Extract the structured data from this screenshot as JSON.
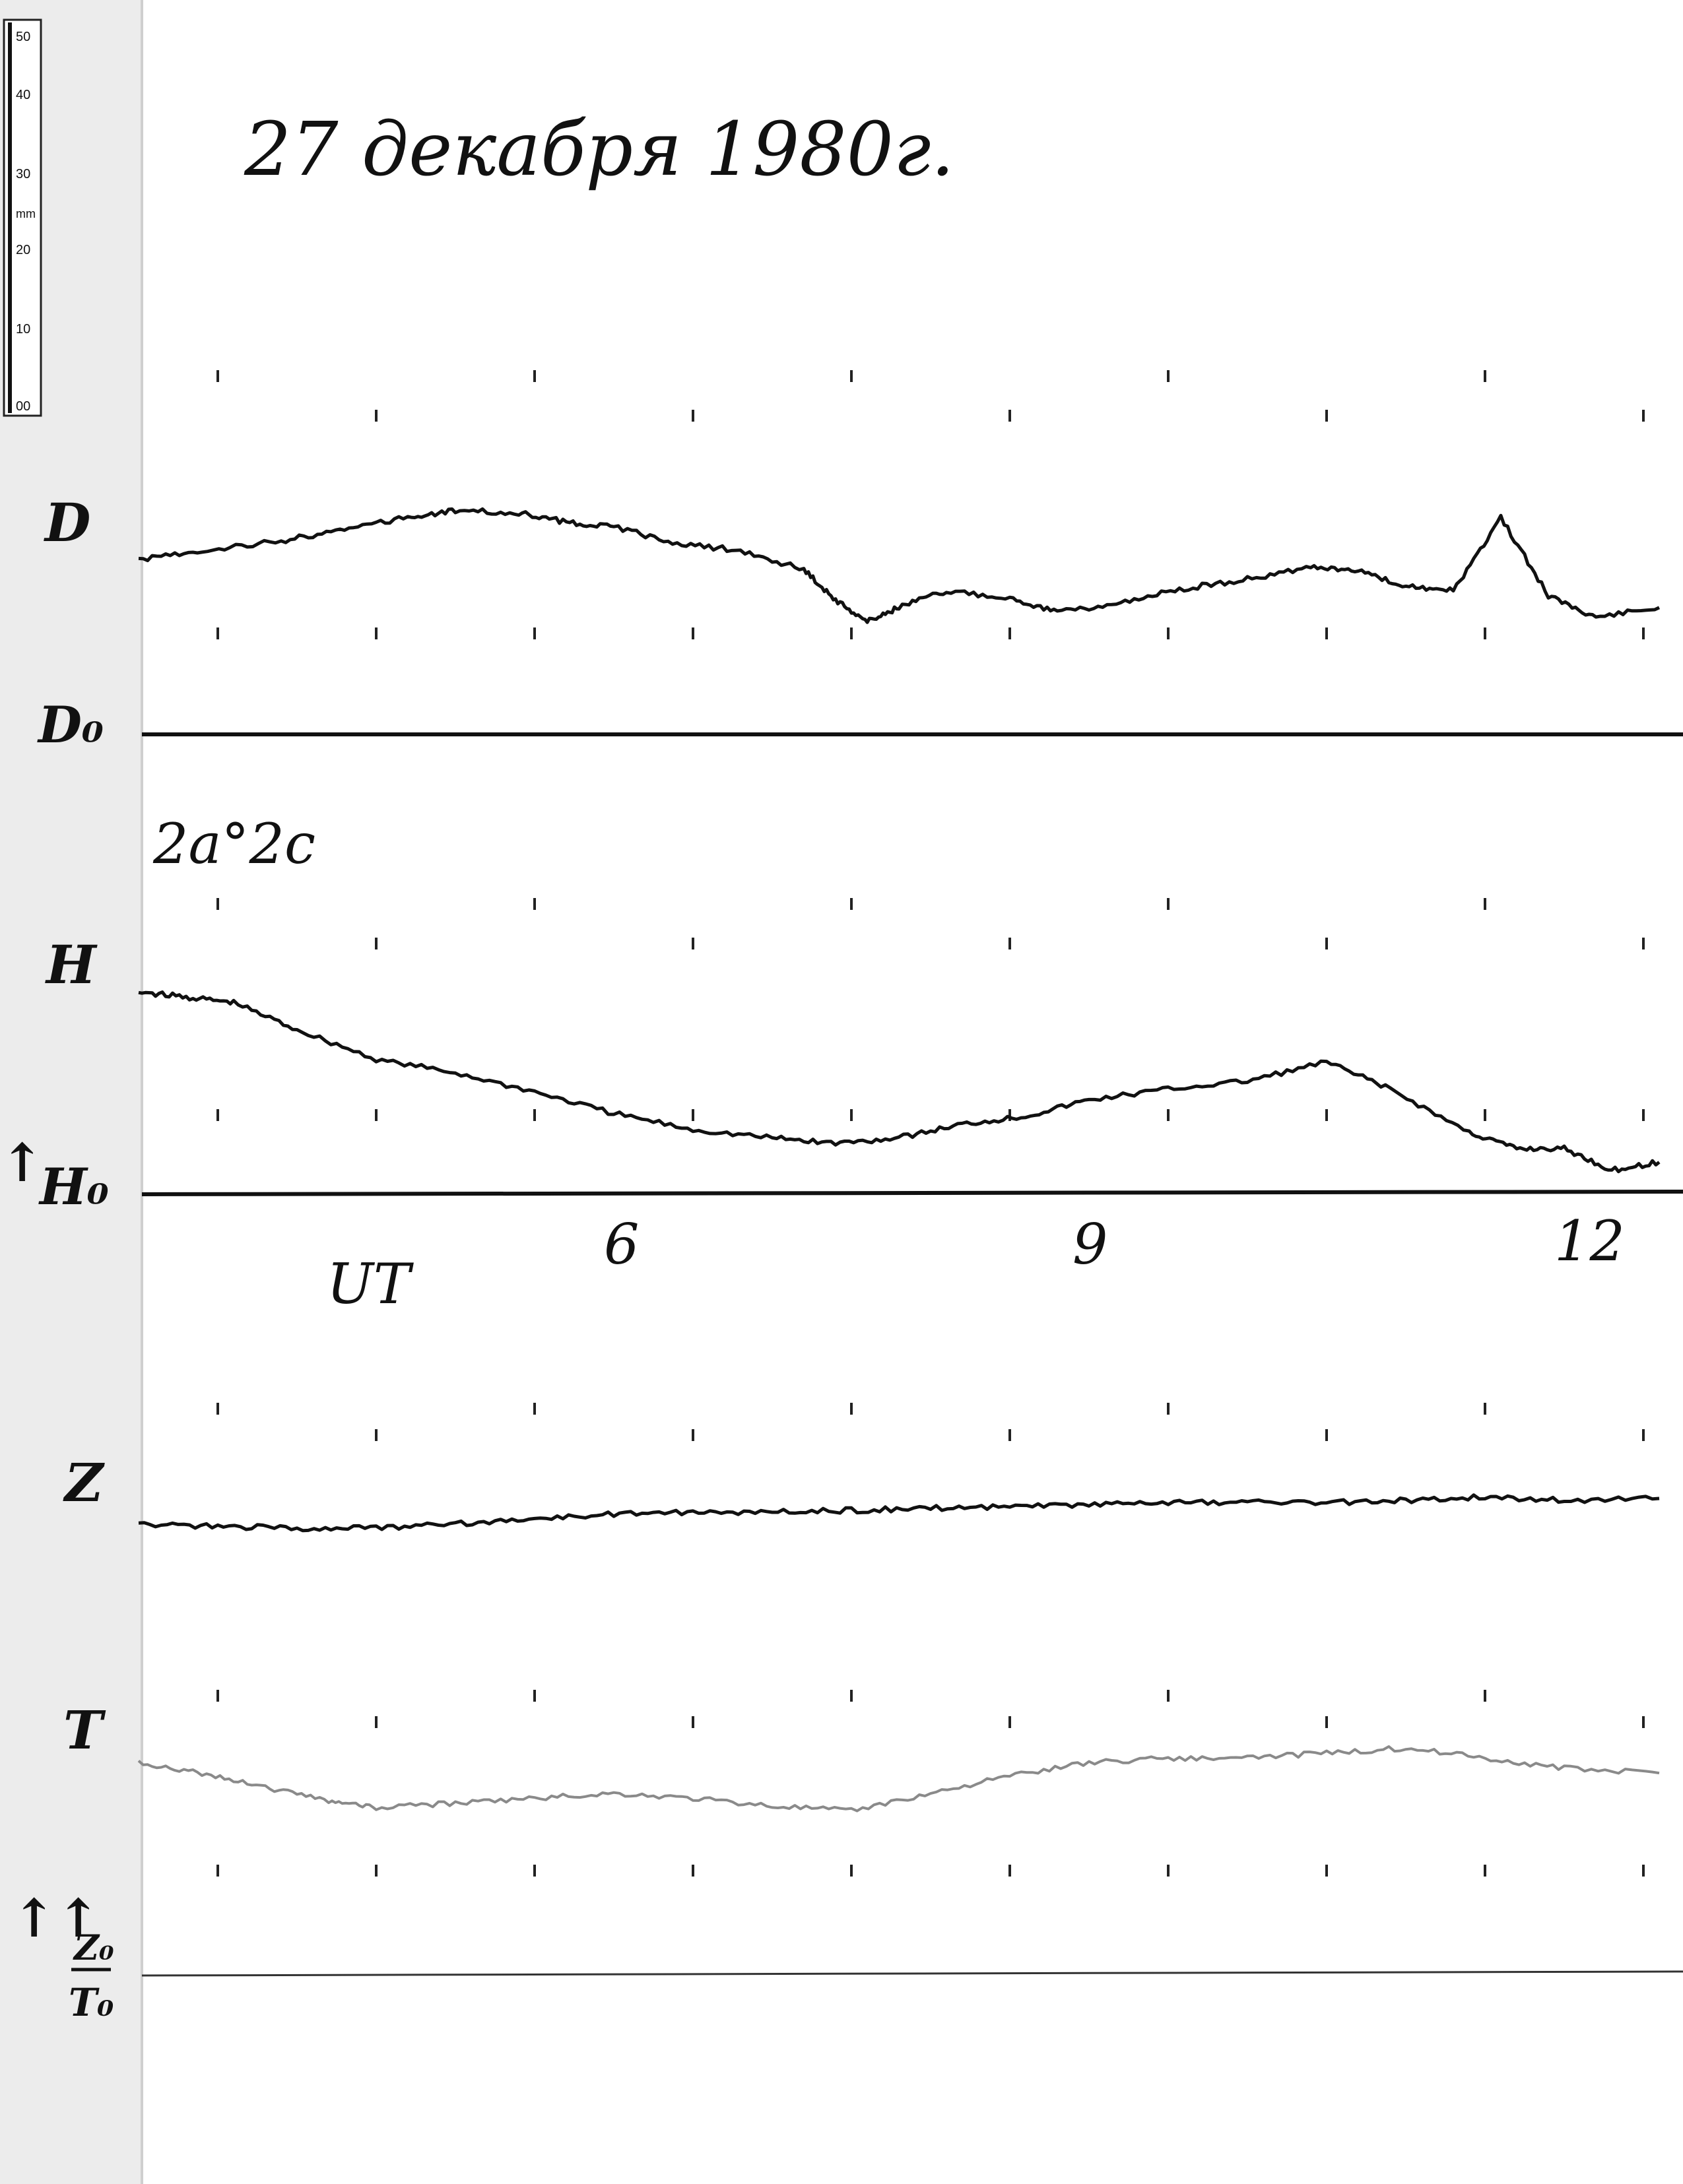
{
  "title": "27 декабря 1980г.",
  "scale_note": "2а°2с",
  "time_axis": {
    "label": "UT",
    "ticks": [
      "6",
      "9",
      "12"
    ]
  },
  "ruler": {
    "unit": "mm",
    "ticks": [
      "50",
      "40",
      "30",
      "20",
      "10",
      "00"
    ]
  },
  "baselines": {
    "D": "D₀",
    "H": "H₀",
    "Z": "Z₀",
    "T": "T₀"
  },
  "arrows": {
    "single": "↑",
    "double": "↑↑"
  },
  "colors": {
    "paper": "#ffffff",
    "ink": "#111111",
    "trace_T": "#8a8a8a",
    "margin": "#d6d6d6"
  },
  "chart_data": {
    "type": "line",
    "x_unit": "UT hours",
    "x_ticks": [
      6,
      9,
      12
    ],
    "series": [
      {
        "name": "D",
        "points": [
          [
            3.0,
            0.42
          ],
          [
            3.4,
            0.46
          ],
          [
            3.9,
            0.5
          ],
          [
            4.3,
            0.55
          ],
          [
            4.7,
            0.6
          ],
          [
            5.0,
            0.63
          ],
          [
            5.4,
            0.62
          ],
          [
            5.7,
            0.58
          ],
          [
            6.0,
            0.56
          ],
          [
            6.4,
            0.49
          ],
          [
            6.8,
            0.46
          ],
          [
            7.2,
            0.38
          ],
          [
            7.4,
            0.25
          ],
          [
            7.6,
            0.16
          ],
          [
            7.8,
            0.22
          ],
          [
            8.1,
            0.29
          ],
          [
            8.5,
            0.26
          ],
          [
            8.8,
            0.2
          ],
          [
            9.2,
            0.24
          ],
          [
            9.6,
            0.3
          ],
          [
            10.0,
            0.34
          ],
          [
            10.4,
            0.39
          ],
          [
            10.7,
            0.38
          ],
          [
            11.0,
            0.31
          ],
          [
            11.3,
            0.29
          ],
          [
            11.6,
            0.6
          ],
          [
            11.9,
            0.27
          ],
          [
            12.2,
            0.18
          ],
          [
            12.6,
            0.22
          ]
        ]
      },
      {
        "name": "H",
        "points": [
          [
            3.0,
            0.7
          ],
          [
            3.3,
            0.68
          ],
          [
            3.6,
            0.66
          ],
          [
            4.0,
            0.56
          ],
          [
            4.5,
            0.45
          ],
          [
            5.0,
            0.4
          ],
          [
            5.5,
            0.33
          ],
          [
            6.0,
            0.25
          ],
          [
            6.5,
            0.19
          ],
          [
            7.0,
            0.16
          ],
          [
            7.4,
            0.14
          ],
          [
            7.8,
            0.16
          ],
          [
            8.2,
            0.21
          ],
          [
            8.6,
            0.24
          ],
          [
            9.0,
            0.3
          ],
          [
            9.5,
            0.34
          ],
          [
            10.0,
            0.37
          ],
          [
            10.5,
            0.44
          ],
          [
            10.9,
            0.34
          ],
          [
            11.4,
            0.18
          ],
          [
            11.7,
            0.12
          ],
          [
            12.0,
            0.12
          ],
          [
            12.3,
            0.04
          ],
          [
            12.6,
            0.07
          ]
        ]
      },
      {
        "name": "Z",
        "points": [
          [
            3.0,
            0.3
          ],
          [
            3.5,
            0.29
          ],
          [
            4.0,
            0.28
          ],
          [
            4.5,
            0.28
          ],
          [
            5.0,
            0.3
          ],
          [
            5.5,
            0.33
          ],
          [
            6.0,
            0.35
          ],
          [
            6.5,
            0.36
          ],
          [
            7.0,
            0.36
          ],
          [
            7.5,
            0.37
          ],
          [
            8.0,
            0.38
          ],
          [
            8.5,
            0.39
          ],
          [
            9.0,
            0.4
          ],
          [
            9.5,
            0.41
          ],
          [
            10.0,
            0.41
          ],
          [
            10.5,
            0.41
          ],
          [
            11.0,
            0.42
          ],
          [
            11.5,
            0.44
          ],
          [
            12.0,
            0.42
          ],
          [
            12.6,
            0.43
          ]
        ]
      },
      {
        "name": "T",
        "points": [
          [
            3.0,
            0.6
          ],
          [
            3.4,
            0.56
          ],
          [
            3.8,
            0.5
          ],
          [
            4.2,
            0.45
          ],
          [
            4.5,
            0.42
          ],
          [
            5.0,
            0.44
          ],
          [
            5.5,
            0.46
          ],
          [
            6.0,
            0.48
          ],
          [
            6.5,
            0.46
          ],
          [
            7.0,
            0.43
          ],
          [
            7.5,
            0.41
          ],
          [
            8.0,
            0.48
          ],
          [
            8.5,
            0.55
          ],
          [
            9.0,
            0.6
          ],
          [
            9.5,
            0.62
          ],
          [
            10.0,
            0.62
          ],
          [
            10.5,
            0.64
          ],
          [
            11.0,
            0.66
          ],
          [
            11.5,
            0.62
          ],
          [
            12.0,
            0.58
          ],
          [
            12.6,
            0.56
          ]
        ]
      }
    ]
  }
}
